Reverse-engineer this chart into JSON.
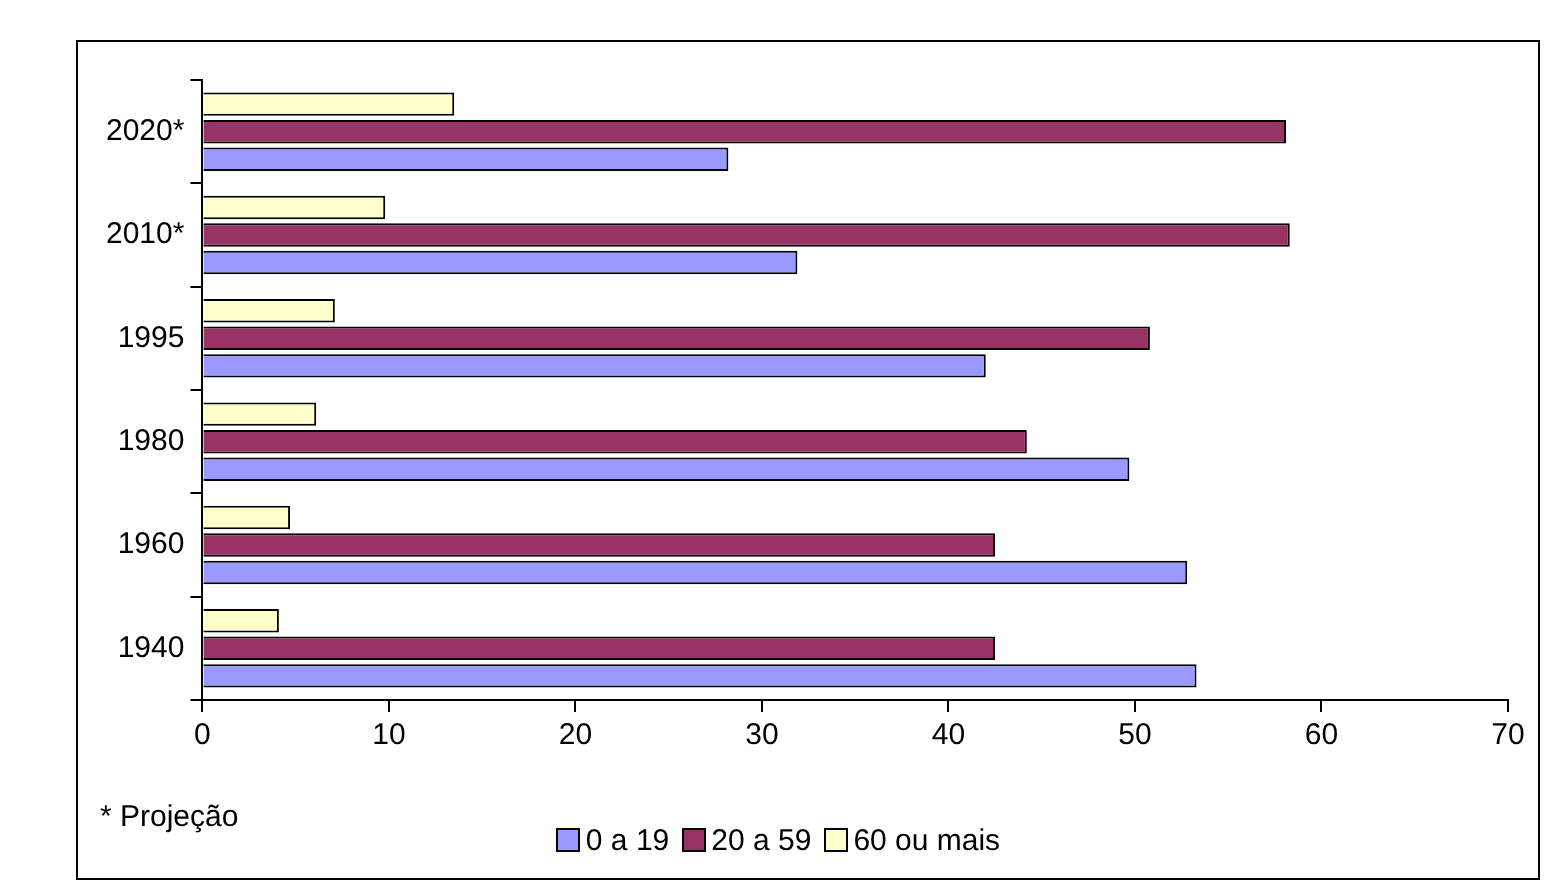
{
  "chart_data": {
    "type": "bar",
    "orientation": "horizontal",
    "categories": [
      "2020*",
      "2010*",
      "1995",
      "1980",
      "1960",
      "1940"
    ],
    "series": [
      {
        "name": "0 a 19",
        "color": "#9999ff",
        "values": [
          28.2,
          31.9,
          42.0,
          49.7,
          52.8,
          53.3
        ]
      },
      {
        "name": "20 a 59",
        "color": "#993366",
        "values": [
          58.1,
          58.3,
          50.8,
          44.2,
          42.5,
          42.5
        ]
      },
      {
        "name": "60 ou mais",
        "color": "#ffffcc",
        "values": [
          13.5,
          9.8,
          7.1,
          6.1,
          4.7,
          4.1
        ]
      }
    ],
    "xlim": [
      0,
      70
    ],
    "xticks": [
      0,
      10,
      20,
      30,
      40,
      50,
      60,
      70
    ],
    "grid": false,
    "legend": "bottom",
    "annotations": [
      "* Projeção"
    ]
  }
}
